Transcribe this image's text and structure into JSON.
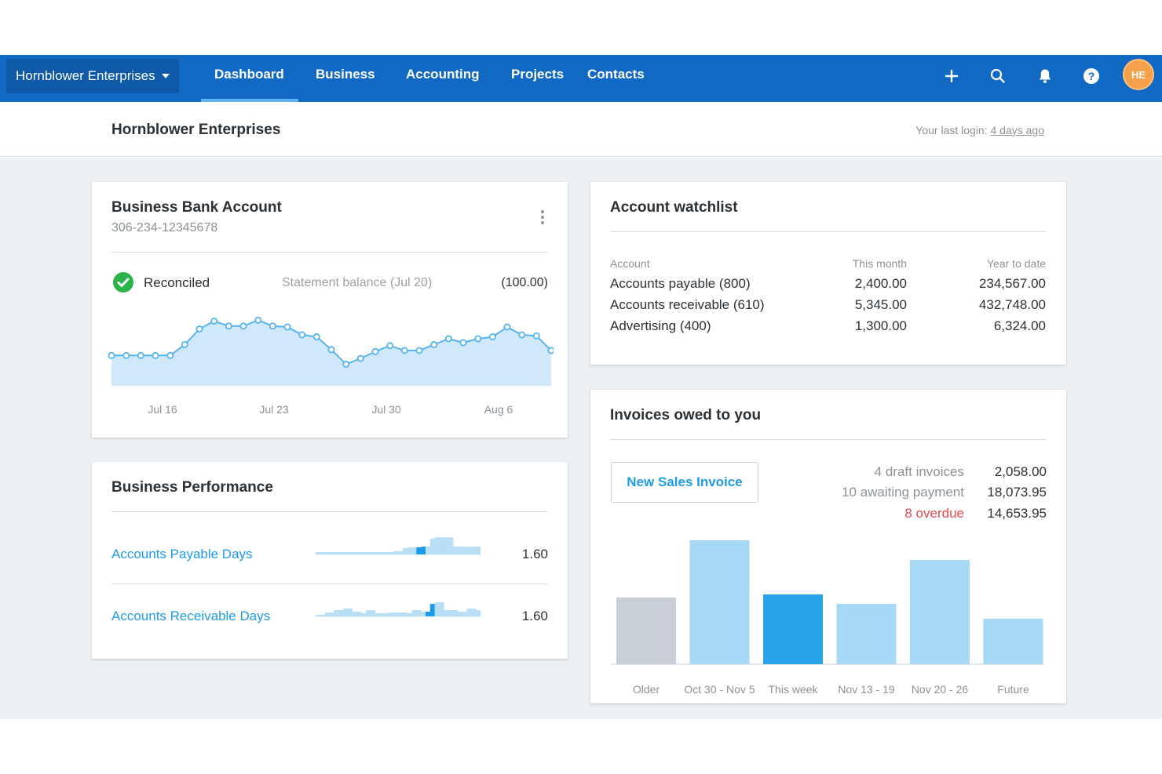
{
  "nav": {
    "org_switcher": "Hornblower Enterprises",
    "tabs": [
      "Dashboard",
      "Business",
      "Accounting",
      "Projects",
      "Contacts"
    ],
    "active_tab": "Dashboard",
    "avatar_initials": "HE",
    "icons": [
      "plus-icon",
      "search-icon",
      "bell-icon",
      "help-icon"
    ]
  },
  "subheader": {
    "org_title": "Hornblower Enterprises",
    "last_login_prefix": "Your last login:",
    "last_login_link": "4 days ago"
  },
  "bank_account": {
    "title": "Business Bank Account",
    "account_number": "306-234-12345678",
    "reconciled_label": "Reconciled",
    "statement_label": "Statement balance (Jul 20)",
    "statement_value": "(100.00)",
    "chart_data": {
      "type": "area",
      "x_ticks": [
        "Jul 16",
        "Jul 23",
        "Jul 30",
        "Aug 6"
      ],
      "values": [
        31,
        31,
        31,
        31,
        31,
        42,
        58,
        66,
        61,
        61,
        67,
        61,
        60,
        52,
        50,
        37,
        22,
        28,
        35,
        41,
        36,
        36,
        42,
        48,
        44,
        48,
        50,
        60,
        52,
        51,
        36
      ]
    }
  },
  "performance": {
    "title": "Business Performance",
    "rows": [
      {
        "label": "Accounts Payable Days",
        "value": "1.60",
        "bars": [
          3,
          3,
          3,
          3,
          3,
          3,
          3,
          3,
          3,
          3,
          3,
          3,
          3,
          3,
          3,
          3,
          3,
          4,
          4,
          8,
          9,
          9,
          9,
          10,
          10,
          20,
          22,
          22,
          22,
          22,
          10,
          10,
          10,
          10,
          10,
          10
        ],
        "highlight": [
          22,
          23
        ]
      },
      {
        "label": "Accounts Receivable Days",
        "value": "1.60",
        "bars": [
          2,
          2,
          5,
          5,
          8,
          8,
          10,
          10,
          6,
          6,
          4,
          8,
          8,
          4,
          4,
          4,
          5,
          5,
          5,
          5,
          4,
          8,
          8,
          6,
          6,
          16,
          18,
          18,
          8,
          8,
          8,
          6,
          6,
          10,
          10,
          8
        ],
        "highlight": [
          24,
          25
        ]
      }
    ]
  },
  "watchlist": {
    "title": "Account watchlist",
    "headers": [
      "Account",
      "This month",
      "Year to date"
    ],
    "rows": [
      [
        "Accounts payable (800)",
        "2,400.00",
        "234,567.00"
      ],
      [
        "Accounts receivable (610)",
        "5,345.00",
        "432,748.00"
      ],
      [
        "Advertising (400)",
        "1,300.00",
        "6,324.00"
      ]
    ]
  },
  "invoices": {
    "title": "Invoices owed to you",
    "new_button": "New Sales Invoice",
    "summary": [
      {
        "label": "4 draft invoices",
        "value": "2,058.00"
      },
      {
        "label": "10 awaiting payment",
        "value": "18,073.95"
      },
      {
        "label": "8 overdue",
        "value": "14,653.95"
      }
    ],
    "chart_data": {
      "type": "bar",
      "categories": [
        "Older",
        "Oct 30 - Nov 5",
        "This week",
        "Nov 13 - 19",
        "Nov 20 - 26",
        "Future"
      ],
      "values": [
        85,
        158,
        89,
        77,
        133,
        58
      ],
      "colors": [
        "#c9cfd6",
        "#a7d9f6",
        "#29a3ea",
        "#a7d9f6",
        "#a7d9f6",
        "#a7d9f6"
      ]
    }
  },
  "colors": {
    "nav_bg": "#1169c4",
    "accent": "#1e9be8",
    "reconciled": "#2cb24a",
    "overdue": "#e5484d"
  }
}
